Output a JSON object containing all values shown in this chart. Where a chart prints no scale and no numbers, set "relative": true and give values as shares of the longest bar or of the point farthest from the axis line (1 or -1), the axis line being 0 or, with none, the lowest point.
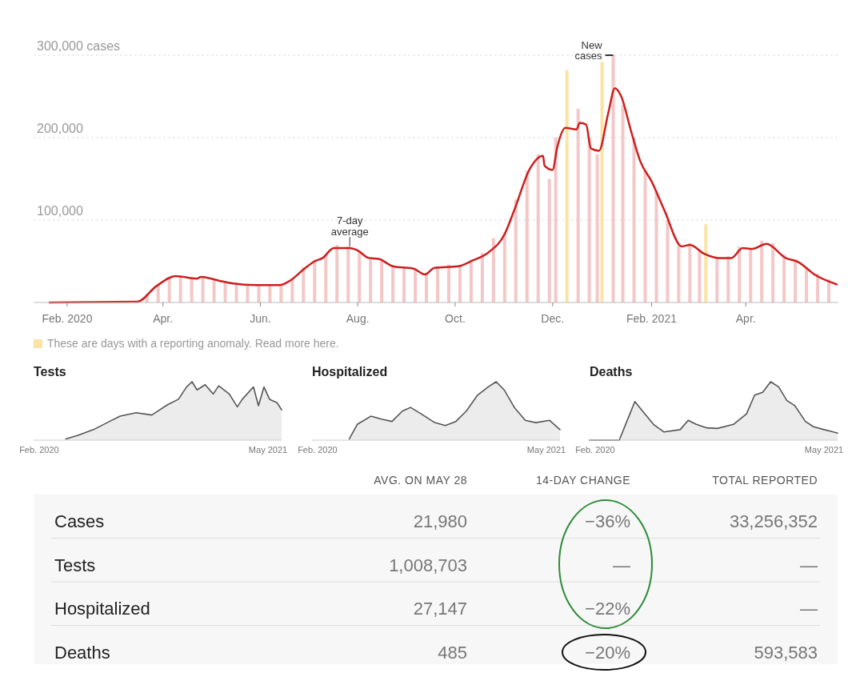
{
  "chart_data": [
    {
      "type": "bar",
      "ylim": [
        0,
        300000
      ],
      "yticks": [
        {
          "value": 100000,
          "label": "100,000"
        },
        {
          "value": 200000,
          "label": "200,000"
        },
        {
          "value": 300000,
          "label": "300,000 cases"
        }
      ],
      "grid": "y",
      "xlim": [
        "2020-01-11",
        "2021-05-29"
      ],
      "xticks": [
        {
          "value": "2020-02-01",
          "label": "Feb. 2020"
        },
        {
          "value": "2020-04-01",
          "label": "Apr."
        },
        {
          "value": "2020-06-01",
          "label": "Jun."
        },
        {
          "value": "2020-08-01",
          "label": "Aug."
        },
        {
          "value": "2020-10-01",
          "label": "Oct."
        },
        {
          "value": "2020-12-01",
          "label": "Dec."
        },
        {
          "value": "2021-02-01",
          "label": "Feb. 2021"
        },
        {
          "value": "2021-04-01",
          "label": "Apr."
        }
      ],
      "series": [
        {
          "type": "bar",
          "x": [
            "2020-03-22",
            "2020-03-29",
            "2020-04-05",
            "2020-04-12",
            "2020-04-19",
            "2020-04-26",
            "2020-05-03",
            "2020-05-10",
            "2020-05-17",
            "2020-05-24",
            "2020-05-31",
            "2020-06-07",
            "2020-06-14",
            "2020-06-21",
            "2020-06-28",
            "2020-07-05",
            "2020-07-12",
            "2020-07-19",
            "2020-07-26",
            "2020-08-02",
            "2020-08-09",
            "2020-08-16",
            "2020-08-23",
            "2020-08-30",
            "2020-09-06",
            "2020-09-13",
            "2020-09-20",
            "2020-09-27",
            "2020-10-04",
            "2020-10-11",
            "2020-10-18",
            "2020-10-25",
            "2020-11-01",
            "2020-11-08",
            "2020-11-15",
            "2020-11-22",
            "2020-11-29",
            "2020-12-03",
            "2020-12-10",
            "2020-12-17",
            "2020-12-24",
            "2020-12-29",
            "2021-01-01",
            "2021-01-08",
            "2021-01-14",
            "2021-01-21",
            "2021-01-28",
            "2021-02-04",
            "2021-02-11",
            "2021-02-18",
            "2021-02-25",
            "2021-03-03",
            "2021-03-07",
            "2021-03-14",
            "2021-03-21",
            "2021-03-28",
            "2021-04-04",
            "2021-04-11",
            "2021-04-18",
            "2021-04-25",
            "2021-05-02",
            "2021-05-09",
            "2021-05-16",
            "2021-05-23"
          ],
          "values": [
            10000,
            22000,
            30000,
            33000,
            30000,
            31000,
            27000,
            25000,
            24000,
            22000,
            21000,
            22000,
            20000,
            28000,
            43000,
            52000,
            58000,
            70000,
            68000,
            62000,
            55000,
            53000,
            45000,
            42000,
            40000,
            36000,
            44000,
            46000,
            45000,
            52000,
            60000,
            78000,
            85000,
            125000,
            160000,
            180000,
            150000,
            200000,
            282000,
            235000,
            200000,
            180000,
            292000,
            300000,
            240000,
            200000,
            160000,
            135000,
            100000,
            70000,
            72000,
            62000,
            95000,
            55000,
            56000,
            68000,
            65000,
            75000,
            72000,
            58000,
            52000,
            42000,
            35000,
            28000
          ],
          "colors": [
            "#f4c7c7",
            "#f4c7c7",
            "#f4c7c7",
            "#f4c7c7",
            "#f4c7c7",
            "#f4c7c7",
            "#f4c7c7",
            "#f4c7c7",
            "#f4c7c7",
            "#f4c7c7",
            "#f4c7c7",
            "#f4c7c7",
            "#f4c7c7",
            "#f4c7c7",
            "#f4c7c7",
            "#f4c7c7",
            "#f4c7c7",
            "#f4c7c7",
            "#f4c7c7",
            "#f4c7c7",
            "#f4c7c7",
            "#f4c7c7",
            "#f4c7c7",
            "#f4c7c7",
            "#f4c7c7",
            "#f4c7c7",
            "#f4c7c7",
            "#f4c7c7",
            "#f4c7c7",
            "#f4c7c7",
            "#f4c7c7",
            "#f4c7c7",
            "#f4c7c7",
            "#f4c7c7",
            "#f4c7c7",
            "#f4c7c7",
            "#f4c7c7",
            "#f4c7c7",
            "#fbe3a6",
            "#f4c7c7",
            "#f4c7c7",
            "#f4c7c7",
            "#fbe3a6",
            "#f4c7c7",
            "#f4c7c7",
            "#f4c7c7",
            "#f4c7c7",
            "#f4c7c7",
            "#f4c7c7",
            "#f4c7c7",
            "#f4c7c7",
            "#f4c7c7",
            "#fbe3a6",
            "#f4c7c7",
            "#f4c7c7",
            "#f4c7c7",
            "#f4c7c7",
            "#f4c7c7",
            "#f4c7c7",
            "#f4c7c7",
            "#f4c7c7",
            "#f4c7c7",
            "#f4c7c7",
            "#f4c7c7"
          ]
        },
        {
          "type": "line",
          "color": "#cc1f1f",
          "x": [
            "2020-01-21",
            "2020-03-16",
            "2020-03-28",
            "2020-04-09",
            "2020-04-22",
            "2020-04-25",
            "2020-05-07",
            "2020-05-15",
            "2020-05-29",
            "2020-06-13",
            "2020-06-20",
            "2020-06-28",
            "2020-07-05",
            "2020-07-10",
            "2020-07-17",
            "2020-07-27",
            "2020-08-01",
            "2020-08-08",
            "2020-08-14",
            "2020-08-23",
            "2020-09-05",
            "2020-09-12",
            "2020-09-18",
            "2020-10-03",
            "2020-10-12",
            "2020-10-22",
            "2020-11-01",
            "2020-11-07",
            "2020-11-17",
            "2020-11-25",
            "2020-11-26",
            "2020-12-01",
            "2020-12-04",
            "2020-12-09",
            "2020-12-16",
            "2020-12-18",
            "2020-12-22",
            "2020-12-25",
            "2020-12-30",
            "2021-01-05",
            "2021-01-09",
            "2021-01-13",
            "2021-01-19",
            "2021-01-25",
            "2021-02-01",
            "2021-02-09",
            "2021-02-20",
            "2021-02-25",
            "2021-03-06",
            "2021-03-15",
            "2021-03-23",
            "2021-03-30",
            "2021-04-05",
            "2021-04-14",
            "2021-04-26",
            "2021-05-04",
            "2021-05-14",
            "2021-05-28"
          ],
          "values": [
            0,
            1000,
            20000,
            32000,
            29000,
            31000,
            26000,
            23000,
            21000,
            21000,
            27000,
            40000,
            50000,
            54000,
            66000,
            66000,
            63000,
            54000,
            53000,
            44000,
            41000,
            34000,
            42000,
            44000,
            51000,
            61000,
            83000,
            112000,
            163000,
            178000,
            166000,
            161000,
            189000,
            212000,
            210000,
            218000,
            216000,
            187000,
            184000,
            231000,
            260000,
            250000,
            209000,
            171000,
            147000,
            112000,
            68000,
            70000,
            59000,
            54000,
            54000,
            66000,
            65000,
            71000,
            54000,
            49000,
            34000,
            22000
          ]
        }
      ],
      "annotations": [
        {
          "text": "7-day average",
          "x": "2020-07-27",
          "y": 66000
        },
        {
          "text": "New cases",
          "x": "2021-01-08",
          "y": 300000
        },
        "These are days with a reporting anomaly. Read more here."
      ]
    },
    {
      "type": "area",
      "title": "Tests",
      "relative": true,
      "xlim": [
        "2020-01-21",
        "2021-05-28"
      ],
      "xticks": [
        {
          "value": "2020-02-01",
          "label": "Feb. 2020"
        },
        {
          "value": "2021-05-01",
          "label": "May 2021"
        }
      ],
      "series": [
        {
          "color": "#555555",
          "x": [
            "2020-03-25",
            "2020-04-17",
            "2020-05-19",
            "2020-06-20",
            "2020-07-11",
            "2020-08-12",
            "2020-09-12",
            "2020-10-14",
            "2020-11-04",
            "2020-11-20",
            "2020-12-01",
            "2020-12-11",
            "2020-12-27",
            "2021-01-12",
            "2021-01-23",
            "2021-02-13",
            "2021-03-01",
            "2021-03-11",
            "2021-04-02",
            "2021-04-12",
            "2021-04-23",
            "2021-05-04",
            "2021-05-19",
            "2021-05-28"
          ],
          "values": [
            0.02,
            0.08,
            0.18,
            0.32,
            0.41,
            0.47,
            0.43,
            0.61,
            0.7,
            0.91,
            1.0,
            0.86,
            0.95,
            0.79,
            0.93,
            0.79,
            0.57,
            0.7,
            0.91,
            0.59,
            0.91,
            0.7,
            0.64,
            0.52
          ]
        }
      ]
    },
    {
      "type": "area",
      "title": "Hospitalized",
      "relative": true,
      "xlim": [
        "2020-01-21",
        "2021-05-28"
      ],
      "xticks": [
        {
          "value": "2020-02-01",
          "label": "Feb. 2020"
        },
        {
          "value": "2021-05-01",
          "label": "May 2021"
        }
      ],
      "series": [
        {
          "color": "#555555",
          "x": [
            "2020-04-04",
            "2020-04-20",
            "2020-05-17",
            "2020-06-07",
            "2020-06-28",
            "2020-07-19",
            "2020-08-04",
            "2020-08-25",
            "2020-09-21",
            "2020-10-12",
            "2020-11-02",
            "2020-11-23",
            "2020-12-15",
            "2021-01-05",
            "2021-01-21",
            "2021-02-06",
            "2021-02-27",
            "2021-03-20",
            "2021-04-10",
            "2021-05-07",
            "2021-05-28"
          ],
          "values": [
            0.02,
            0.27,
            0.41,
            0.36,
            0.32,
            0.5,
            0.56,
            0.45,
            0.3,
            0.25,
            0.32,
            0.5,
            0.77,
            0.91,
            1.0,
            0.86,
            0.55,
            0.34,
            0.3,
            0.34,
            0.18
          ]
        }
      ]
    },
    {
      "type": "area",
      "title": "Deaths",
      "relative": true,
      "xlim": [
        "2020-01-21",
        "2021-05-28"
      ],
      "xticks": [
        {
          "value": "2020-02-01",
          "label": "Feb. 2020"
        },
        {
          "value": "2021-05-01",
          "label": "May 2021"
        }
      ],
      "series": [
        {
          "color": "#555555",
          "x": [
            "2020-01-21",
            "2020-03-20",
            "2020-04-04",
            "2020-04-20",
            "2020-05-05",
            "2020-05-27",
            "2020-06-17",
            "2020-07-19",
            "2020-08-04",
            "2020-08-20",
            "2020-09-10",
            "2020-10-01",
            "2020-11-02",
            "2020-11-28",
            "2020-12-14",
            "2020-12-30",
            "2021-01-15",
            "2021-01-31",
            "2021-02-16",
            "2021-03-04",
            "2021-03-25",
            "2021-04-10",
            "2021-05-01",
            "2021-05-15",
            "2021-05-28"
          ],
          "values": [
            0,
            0,
            0.32,
            0.66,
            0.5,
            0.27,
            0.14,
            0.18,
            0.34,
            0.27,
            0.21,
            0.2,
            0.27,
            0.45,
            0.77,
            0.82,
            1.0,
            0.91,
            0.68,
            0.59,
            0.32,
            0.23,
            0.18,
            0.15,
            0.12
          ]
        }
      ]
    },
    {
      "type": "other",
      "categories": [
        "AVG. ON MAY 28",
        "14-DAY CHANGE",
        "TOTAL REPORTED"
      ],
      "y_categories": [
        "Cases",
        "Tests",
        "Hospitalized",
        "Deaths"
      ],
      "cell_labels": [
        [
          "21,980",
          "−36%",
          "33,256,352"
        ],
        [
          "1,008,703",
          "—",
          "—"
        ],
        [
          "27,147",
          "−22%",
          "—"
        ],
        [
          "485",
          "−20%",
          "593,583"
        ]
      ]
    }
  ]
}
